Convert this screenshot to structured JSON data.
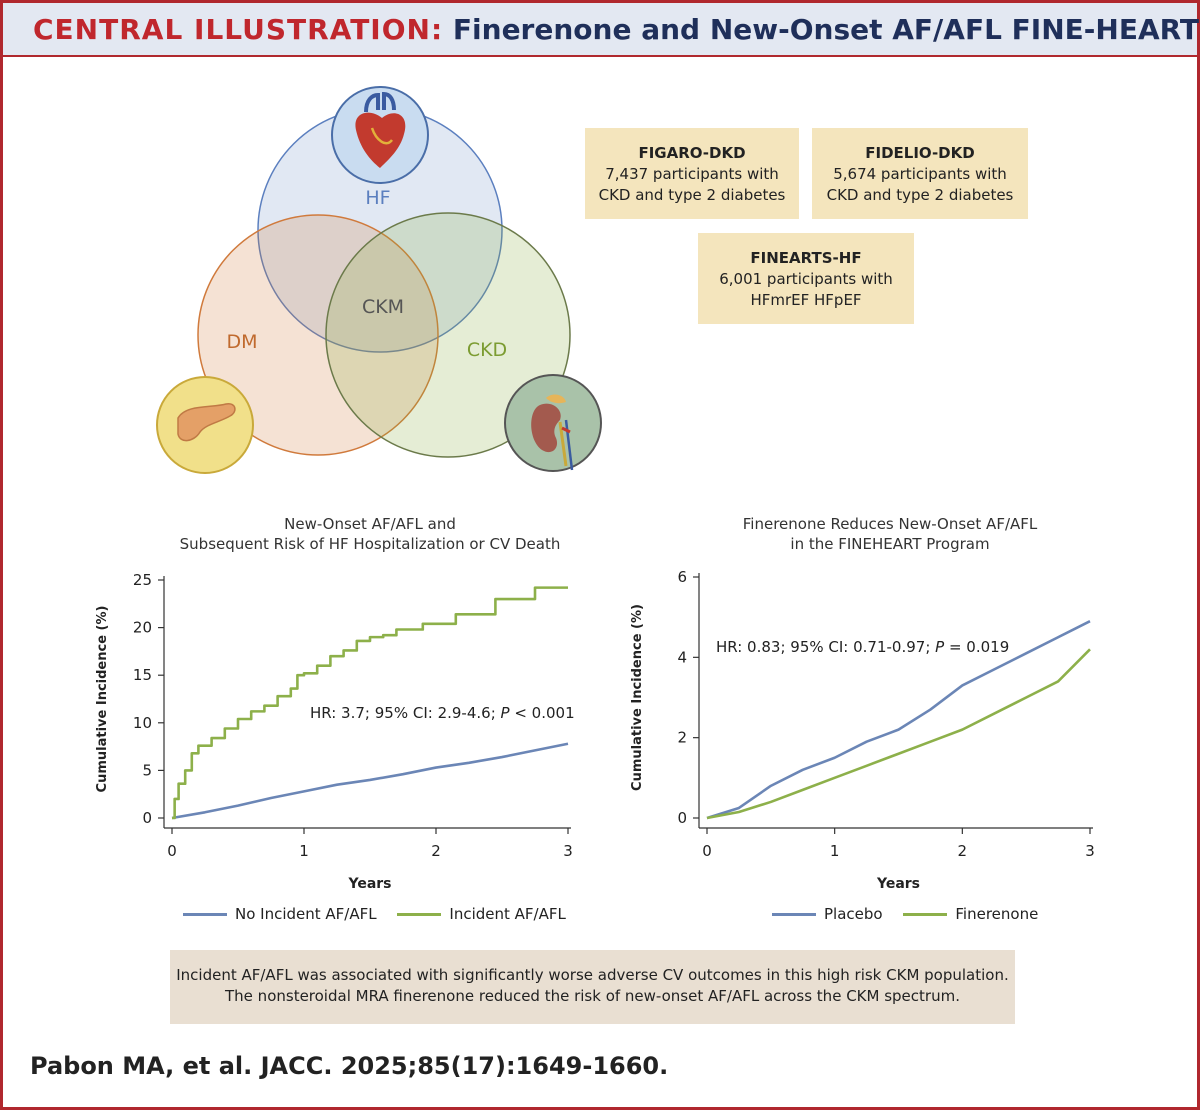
{
  "header": {
    "title_red": "CENTRAL ILLUSTRATION:",
    "title_navy": "Finerenone and New-Onset AF/AFL FINE-HEART"
  },
  "venn": {
    "labels": {
      "hf": "HF",
      "dm": "DM",
      "ckd": "CKD",
      "ckm": "CKM"
    },
    "colors": {
      "hf": "#5b7fbf",
      "dm": "#d07a3c",
      "ckd": "#8aab3e"
    },
    "icons": [
      "heart-icon",
      "pancreas-icon",
      "kidney-icon"
    ]
  },
  "trials": [
    {
      "name": "FIGARO-DKD",
      "line1": "7,437 participants with",
      "line2": "CKD and type 2 diabetes"
    },
    {
      "name": "FIDELIO-DKD",
      "line1": "5,674 participants with",
      "line2": "CKD and type 2 diabetes"
    },
    {
      "name": "FINEARTS-HF",
      "line1": "6,001 participants with",
      "line2": "HFmrEF HFpEF"
    }
  ],
  "chart_data": [
    {
      "type": "line",
      "title": "New-Onset AF/AFL and\nSubsequent Risk of HF Hospitalization or CV Death",
      "xlabel": "Years",
      "ylabel": "Cumulative Incidence (%)",
      "xlim": [
        0,
        3
      ],
      "ylim": [
        0,
        25
      ],
      "xticks": [
        0,
        1,
        2,
        3
      ],
      "yticks": [
        0,
        5,
        10,
        15,
        20,
        25
      ],
      "annotation": "HR: 3.7; 95% CI: 2.9-4.6; P < 0.001",
      "legend": "bottom",
      "series": [
        {
          "name": "No Incident AF/AFL",
          "color": "#6b86b6",
          "x": [
            0,
            0.25,
            0.5,
            0.75,
            1.0,
            1.25,
            1.5,
            1.75,
            2.0,
            2.25,
            2.5,
            2.75,
            3.0
          ],
          "y": [
            0,
            0.6,
            1.3,
            2.1,
            2.8,
            3.5,
            4.0,
            4.6,
            5.3,
            5.8,
            6.4,
            7.1,
            7.8
          ]
        },
        {
          "name": "Incident AF/AFL",
          "color": "#8db04a",
          "x": [
            0,
            0.02,
            0.05,
            0.1,
            0.15,
            0.2,
            0.3,
            0.4,
            0.5,
            0.6,
            0.7,
            0.8,
            0.9,
            0.95,
            1.0,
            1.1,
            1.2,
            1.3,
            1.4,
            1.5,
            1.6,
            1.7,
            1.9,
            2.15,
            2.45,
            2.75,
            3.0
          ],
          "y": [
            0,
            2.0,
            3.6,
            5.0,
            6.8,
            7.6,
            8.4,
            9.4,
            10.4,
            11.2,
            11.8,
            12.8,
            13.6,
            15.0,
            15.2,
            16.0,
            17.0,
            17.6,
            18.6,
            19.0,
            19.2,
            19.8,
            20.4,
            21.4,
            23.0,
            24.2,
            24.2
          ],
          "step": true
        }
      ]
    },
    {
      "type": "line",
      "title": "Finerenone Reduces New-Onset AF/AFL\nin the FINEHEART Program",
      "xlabel": "Years",
      "ylabel": "Cumulative Incidence (%)",
      "xlim": [
        0,
        3
      ],
      "ylim": [
        0,
        6
      ],
      "xticks": [
        0,
        1,
        2,
        3
      ],
      "yticks": [
        0,
        2,
        4,
        6
      ],
      "annotation": "HR: 0.83; 95% CI: 0.71-0.97; P = 0.019",
      "legend": "bottom",
      "series": [
        {
          "name": "Placebo",
          "color": "#6b86b6",
          "x": [
            0,
            0.25,
            0.5,
            0.75,
            1.0,
            1.25,
            1.5,
            1.75,
            2.0,
            2.25,
            2.5,
            2.75,
            3.0
          ],
          "y": [
            0,
            0.25,
            0.8,
            1.2,
            1.5,
            1.9,
            2.2,
            2.7,
            3.3,
            3.7,
            4.1,
            4.5,
            4.9
          ]
        },
        {
          "name": "Finerenone",
          "color": "#8db04a",
          "x": [
            0,
            0.25,
            0.5,
            0.75,
            1.0,
            1.25,
            1.5,
            1.75,
            2.0,
            2.25,
            2.5,
            2.75,
            3.0
          ],
          "y": [
            0,
            0.15,
            0.4,
            0.7,
            1.0,
            1.3,
            1.6,
            1.9,
            2.2,
            2.6,
            3.0,
            3.4,
            4.2
          ]
        }
      ]
    }
  ],
  "summary": {
    "line1": "Incident AF/AFL was associated with significantly worse adverse CV outcomes in this high risk CKM population.",
    "line2": "The nonsteroidal MRA finerenone reduced the risk of new-onset AF/AFL across the CKM spectrum."
  },
  "citation": "Pabon MA, et al. JACC. 2025;85(17):1649-1660."
}
